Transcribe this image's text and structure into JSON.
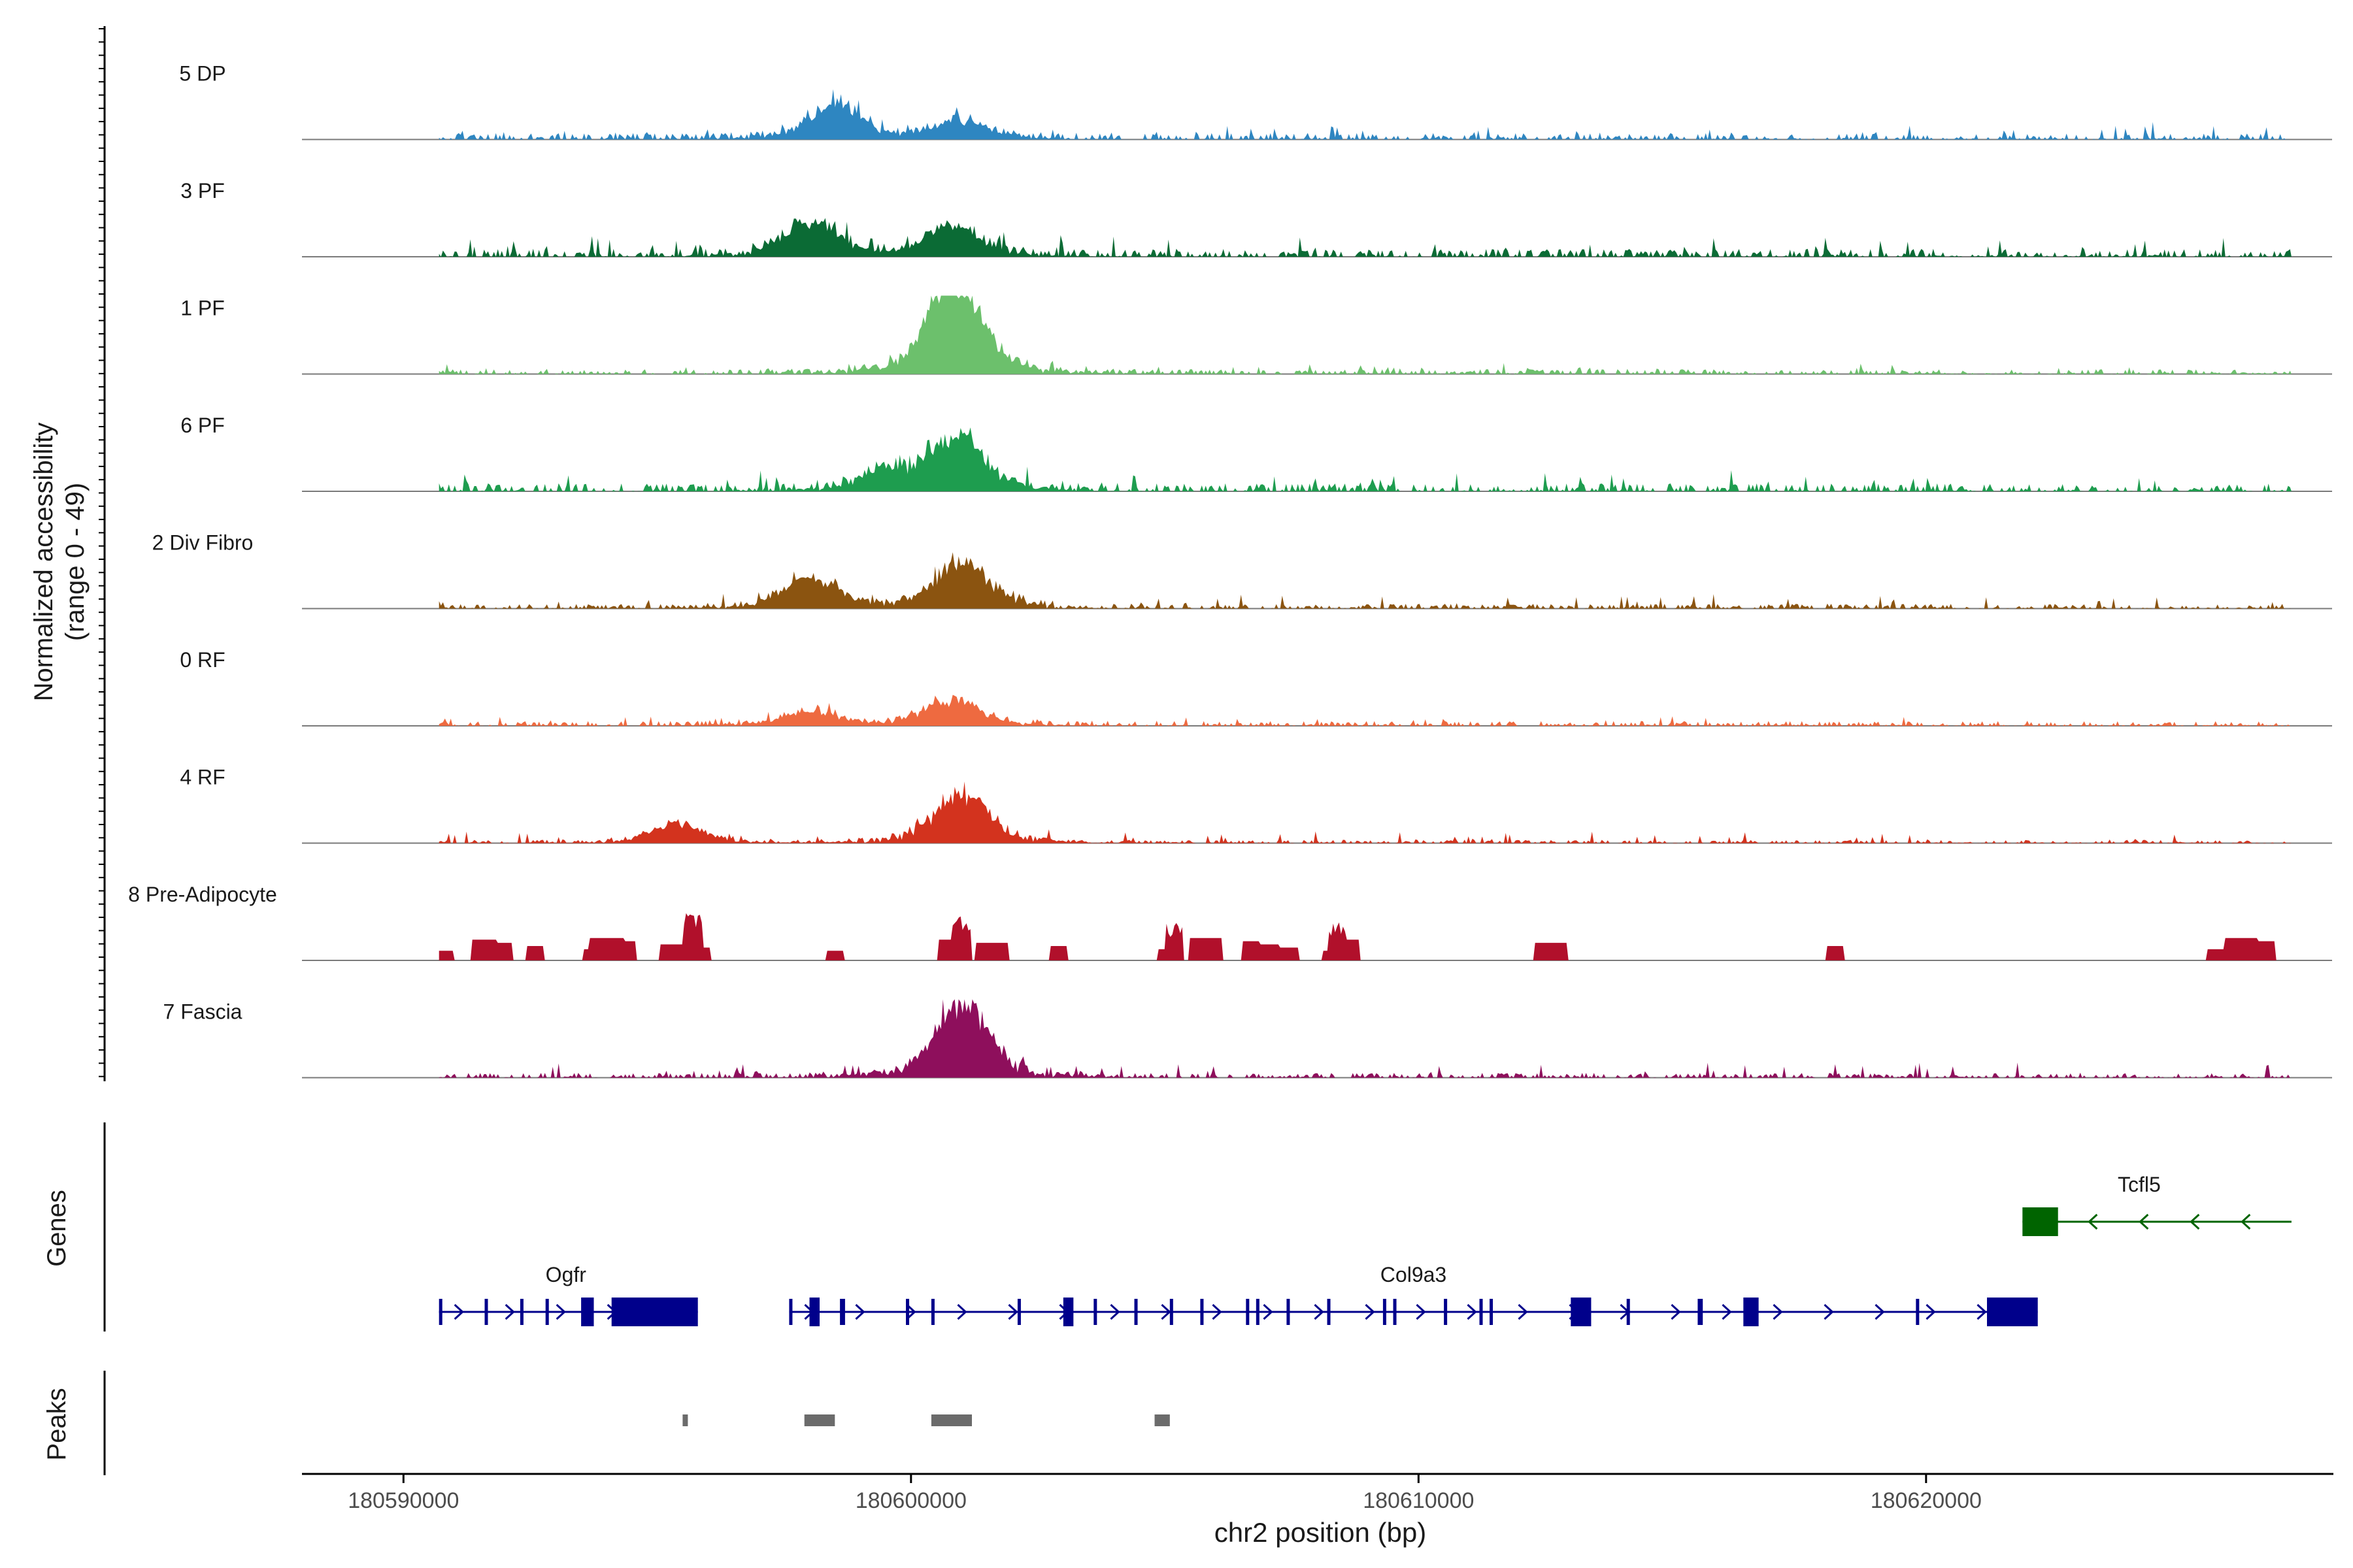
{
  "chart_data": {
    "type": "area",
    "title": "",
    "xlabel": "chr2 position (bp)",
    "ylabel_line1": "Normalized accessibility",
    "ylabel_line2": "(range 0 - 49)",
    "xlim": [
      180588000,
      180628000
    ],
    "x_ticks": [
      180590000,
      180600000,
      180610000,
      180620000
    ],
    "x_tick_labels": [
      "180590000",
      "180600000",
      "180610000",
      "180620000"
    ],
    "data_start": 180590700,
    "data_end": 180627200,
    "y_range": [
      0,
      49
    ],
    "tracks": [
      {
        "name": "5 DP",
        "color": "#2E86C1",
        "peak_positions": [
          180598500,
          180601000
        ],
        "peak_heights": [
          22,
          12
        ],
        "base": 4,
        "noise": 5,
        "seed": 11
      },
      {
        "name": "3 PF",
        "color": "#0B6B35",
        "peak_positions": [
          180598000,
          180600800
        ],
        "peak_heights": [
          22,
          20
        ],
        "base": 5,
        "noise": 6,
        "seed": 23
      },
      {
        "name": "1 PF",
        "color": "#6CC06C",
        "peak_positions": [
          180600700,
          180601000
        ],
        "peak_heights": [
          30,
          32
        ],
        "base": 3,
        "noise": 3,
        "seed": 37
      },
      {
        "name": "6 PF",
        "color": "#1E9D4F",
        "peak_positions": [
          180599500,
          180600900
        ],
        "peak_heights": [
          12,
          34
        ],
        "base": 5,
        "noise": 6,
        "seed": 41
      },
      {
        "name": "2 Div Fibro",
        "color": "#8B5410",
        "peak_positions": [
          180598000,
          180601000
        ],
        "peak_heights": [
          20,
          30
        ],
        "base": 3,
        "noise": 5,
        "seed": 53
      },
      {
        "name": "0 RF",
        "color": "#EE6A40",
        "peak_positions": [
          180598000,
          180600800
        ],
        "peak_heights": [
          10,
          17
        ],
        "base": 3,
        "noise": 3,
        "seed": 67
      },
      {
        "name": "4 RF",
        "color": "#D3331E",
        "peak_positions": [
          180595400,
          180601000
        ],
        "peak_heights": [
          12,
          34
        ],
        "base": 2,
        "noise": 4,
        "seed": 79
      },
      {
        "name": "8 Pre-Adipocyte",
        "color": "#B1102B",
        "peak_positions": [
          180595700,
          180601000,
          180605200,
          180608400
        ],
        "peak_heights": [
          32,
          28,
          24,
          24
        ],
        "base": 0,
        "noise": 0,
        "seed": 83
      },
      {
        "name": "7 Fascia",
        "color": "#8E0F5C",
        "peak_positions": [
          180601000
        ],
        "peak_heights": [
          49
        ],
        "base": 3,
        "noise": 5,
        "seed": 97
      }
    ],
    "genes_label": "Genes",
    "genes": [
      {
        "name": "Ogfr",
        "start": 180590700,
        "end": 180595800,
        "strand": "+",
        "color": "#00008B",
        "label_pos": 180593200,
        "exons": [
          [
            180590700,
            180590750
          ],
          [
            180591600,
            180591650
          ],
          [
            180592300,
            180592350
          ],
          [
            180592800,
            180592850
          ],
          [
            180593500,
            180593750
          ],
          [
            180594100,
            180595800
          ]
        ]
      },
      {
        "name": "Col9a3",
        "start": 180597600,
        "end": 180622200,
        "strand": "+",
        "color": "#00008B",
        "label_pos": 180609900,
        "exons": [
          [
            180597600,
            180597650
          ],
          [
            180598000,
            180598200
          ],
          [
            180598600,
            180598700
          ],
          [
            180599900,
            180599950
          ],
          [
            180600400,
            180600450
          ],
          [
            180602100,
            180602150
          ],
          [
            180603000,
            180603200
          ],
          [
            180603600,
            180603650
          ],
          [
            180604400,
            180604450
          ],
          [
            180605100,
            180605150
          ],
          [
            180605700,
            180605750
          ],
          [
            180606600,
            180606650
          ],
          [
            180606800,
            180606850
          ],
          [
            180607400,
            180607450
          ],
          [
            180608200,
            180608250
          ],
          [
            180609300,
            180609350
          ],
          [
            180609500,
            180609550
          ],
          [
            180610500,
            180610550
          ],
          [
            180611200,
            180611250
          ],
          [
            180611400,
            180611450
          ],
          [
            180613000,
            180613400
          ],
          [
            180614100,
            180614150
          ],
          [
            180615500,
            180615600
          ],
          [
            180616400,
            180616700
          ],
          [
            180619800,
            180619850
          ],
          [
            180621200,
            180622200
          ]
        ]
      },
      {
        "name": "Tcfl5",
        "start": 180621900,
        "end": 180627200,
        "strand": "-",
        "color": "#006400",
        "label_pos": 180624200,
        "exons": [
          [
            180621900,
            180622600
          ]
        ]
      }
    ],
    "peaks_label": "Peaks",
    "peaks": [
      [
        180595500,
        180595600
      ],
      [
        180597900,
        180598500
      ],
      [
        180600400,
        180601200
      ],
      [
        180604800,
        180605100
      ]
    ]
  }
}
